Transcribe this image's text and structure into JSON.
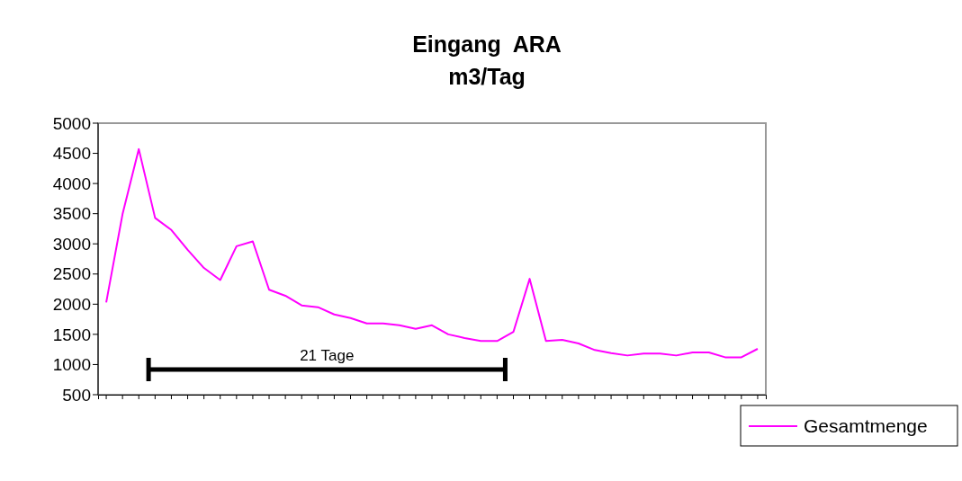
{
  "chart_data": {
    "type": "line",
    "title": "Eingang  ARA\nm3/Tag",
    "categories": [
      null,
      null,
      null,
      null,
      null,
      null,
      null,
      null,
      null,
      null,
      null,
      null,
      null,
      null,
      null,
      null,
      null,
      null,
      null,
      null,
      null,
      null,
      null,
      null,
      null,
      null,
      null,
      null,
      null,
      null,
      null,
      null,
      null,
      null,
      null,
      null,
      null,
      null,
      null,
      null,
      null
    ],
    "series": [
      {
        "name": "Gesamtmenge",
        "color": "#ff00ff",
        "values": [
          2030,
          3490,
          4570,
          3430,
          3230,
          2900,
          2600,
          2400,
          2960,
          3040,
          2240,
          2140,
          1980,
          1950,
          1830,
          1770,
          1680,
          1680,
          1650,
          1590,
          1650,
          1500,
          1440,
          1390,
          1390,
          1540,
          2420,
          1390,
          1410,
          1350,
          1240,
          1190,
          1150,
          1180,
          1180,
          1150,
          1200,
          1200,
          1120,
          1120,
          1260
        ]
      }
    ],
    "ylim": [
      500,
      5000
    ],
    "yticks": [
      500,
      1000,
      1500,
      2000,
      2500,
      3000,
      3500,
      4000,
      4500,
      5000
    ],
    "annotations": [
      "21 Tage"
    ],
    "legend": "right",
    "tick_labels": "y",
    "grid": false,
    "marker": "none",
    "line_style": "solid"
  }
}
